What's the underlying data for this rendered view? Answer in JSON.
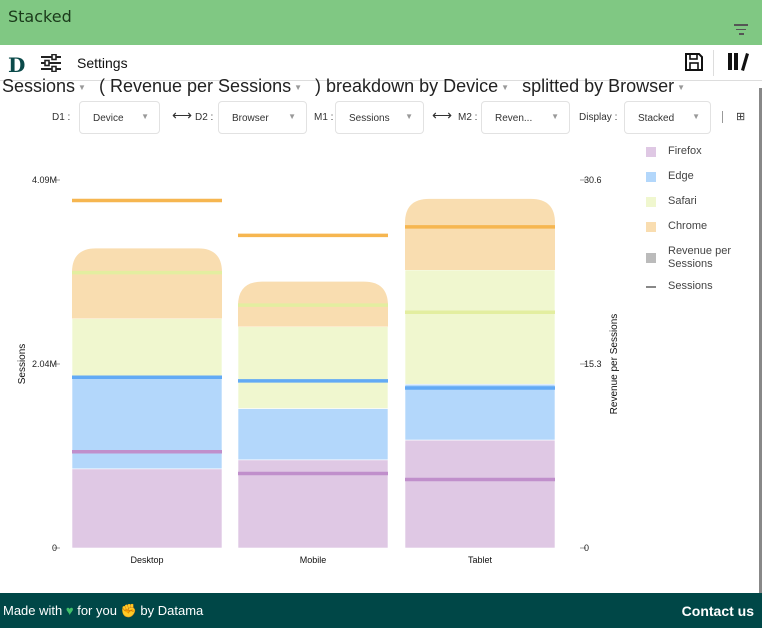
{
  "app": {
    "title": "Stacked",
    "settings_label": "Settings",
    "logo": "D"
  },
  "heading": {
    "m1": "Sessions",
    "m2": "( Revenue per Sessions",
    "mid": ") breakdown by Device",
    "d2": "splitted by Browser"
  },
  "controls": {
    "d1_label": "D1 :",
    "d1_value": "Device",
    "d2_label": "D2 :",
    "d2_value": "Browser",
    "m1_label": "M1 :",
    "m1_value": "Sessions",
    "m2_label": "M2 :",
    "m2_value": "Reven...",
    "display_label": "Display :",
    "display_value": "Stacked"
  },
  "footer": {
    "made": "Made with",
    "for": "for you",
    "by": "by Datama",
    "contact": "Contact us"
  },
  "chart_data": {
    "type": "bar",
    "mode": "stacked",
    "categories": [
      "Desktop",
      "Mobile",
      "Tablet"
    ],
    "ylabel": "Sessions",
    "y2label": "Revenue per Sessions",
    "ylim": [
      0,
      4.09
    ],
    "y2lim": [
      0,
      30.6
    ],
    "yticks": [
      "0",
      "2.04M",
      "4.09M"
    ],
    "y2ticks": [
      "0",
      "15.3",
      "30.6"
    ],
    "series": [
      {
        "name": "Firefox",
        "color": "#dfc8e4",
        "line": "#c08fcb",
        "values": [
          0.88,
          0.98,
          1.2
        ],
        "revenue_per_session": [
          8.0,
          6.2,
          5.7
        ]
      },
      {
        "name": "Edge",
        "color": "#b3d7fb",
        "line": "#62aaf5",
        "values": [
          1.01,
          0.57,
          0.62
        ],
        "revenue_per_session": [
          14.2,
          13.9,
          13.3
        ]
      },
      {
        "name": "Safari",
        "color": "#f0f7cf",
        "line": "#e3eea0",
        "values": [
          0.66,
          0.91,
          1.27
        ],
        "revenue_per_session": [
          22.9,
          20.2,
          19.6
        ]
      },
      {
        "name": "Chrome",
        "color": "#f9ddb0",
        "line": "#f6b650",
        "values": [
          0.78,
          0.5,
          0.79
        ],
        "revenue_per_session": [
          28.9,
          26.0,
          26.7
        ]
      }
    ],
    "legend": [
      {
        "label": "Firefox",
        "color": "#dfc8e4"
      },
      {
        "label": "Edge",
        "color": "#b3d7fb"
      },
      {
        "label": "Safari",
        "color": "#f0f7cf"
      },
      {
        "label": "Chrome",
        "color": "#f9ddb0"
      },
      {
        "label": "Revenue per Sessions",
        "color": "#bbbbbb"
      },
      {
        "label": "Sessions",
        "color": "#888888"
      }
    ],
    "legend_position": "right"
  }
}
